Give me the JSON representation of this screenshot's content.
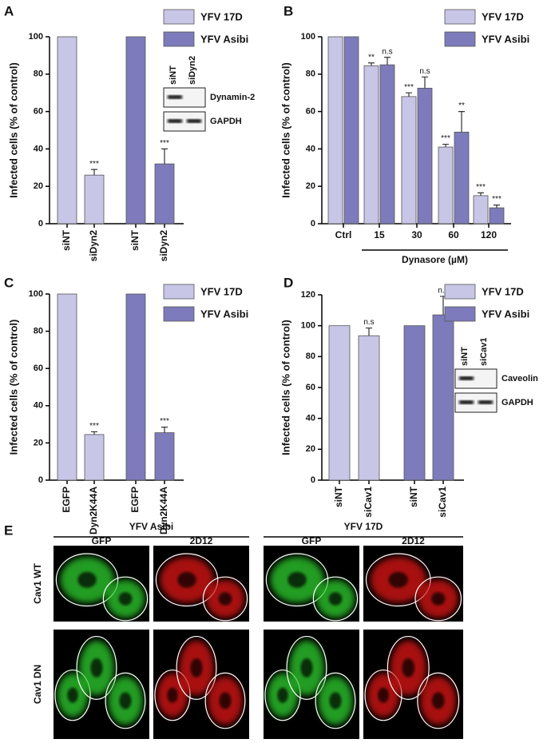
{
  "chart_data": [
    {
      "type": "bar",
      "panel": "A",
      "ylabel": "Infected cells (% of control)",
      "categories": [
        "siNT",
        "siDyn2",
        "siNT",
        "siDyn2"
      ],
      "series": [
        {
          "name": "YFV 17D",
          "color": "#c8c6e6",
          "values": [
            100,
            26,
            null,
            null
          ],
          "errors": [
            null,
            3,
            null,
            null
          ],
          "annotations": [
            null,
            "***",
            null,
            null
          ]
        },
        {
          "name": "YFV Asibi",
          "color": "#7d7bbb",
          "values": [
            null,
            null,
            100,
            32
          ],
          "errors": [
            null,
            null,
            null,
            8
          ],
          "annotations": [
            null,
            null,
            null,
            "***"
          ]
        }
      ],
      "ylim": [
        0,
        100
      ],
      "yticks": [
        0,
        20,
        40,
        60,
        80,
        100
      ],
      "inset": {
        "lanes": [
          "siNT",
          "siDyn2"
        ],
        "bands": [
          "Dynamin-2",
          "GAPDH"
        ]
      }
    },
    {
      "type": "bar",
      "panel": "B",
      "ylabel": "Infected cells (% of control)",
      "xlabel": "Dynasore (µM)",
      "categories": [
        "Ctrl",
        "15",
        "30",
        "60",
        "120"
      ],
      "series": [
        {
          "name": "YFV 17D",
          "color": "#c8c6e6",
          "values": [
            100,
            84.5,
            68,
            41,
            15
          ],
          "errors": [
            null,
            1.5,
            2,
            1.5,
            1.5
          ],
          "annotations": [
            null,
            "**",
            "***",
            "***",
            "***"
          ]
        },
        {
          "name": "YFV Asibi",
          "color": "#7d7bbb",
          "values": [
            100,
            85,
            72.5,
            49,
            8.5
          ],
          "errors": [
            null,
            4,
            6,
            11,
            1.5
          ],
          "annotations": [
            null,
            "n.s",
            "n.s",
            "**",
            "***"
          ]
        }
      ],
      "ylim": [
        0,
        100
      ],
      "yticks": [
        0,
        20,
        40,
        60,
        80,
        100
      ]
    },
    {
      "type": "bar",
      "panel": "C",
      "ylabel": "Infected cells (% of control)",
      "categories": [
        "EGFP",
        "Dyn2K44A",
        "EGFP",
        "Dyn2K44A"
      ],
      "series": [
        {
          "name": "YFV 17D",
          "color": "#c8c6e6",
          "values": [
            100,
            24.5,
            null,
            null
          ],
          "errors": [
            null,
            1.5,
            null,
            null
          ],
          "annotations": [
            null,
            "***",
            null,
            null
          ]
        },
        {
          "name": "YFV Asibi",
          "color": "#7d7bbb",
          "values": [
            null,
            null,
            100,
            25.5
          ],
          "errors": [
            null,
            null,
            null,
            3
          ],
          "annotations": [
            null,
            null,
            null,
            "***"
          ]
        }
      ],
      "ylim": [
        0,
        100
      ],
      "yticks": [
        0,
        20,
        40,
        60,
        80,
        100
      ]
    },
    {
      "type": "bar",
      "panel": "D",
      "ylabel": "Infected cells (% of control)",
      "categories": [
        "siNT",
        "siCav1",
        "siNT",
        "siCav1"
      ],
      "series": [
        {
          "name": "YFV 17D",
          "color": "#c8c6e6",
          "values": [
            100,
            93.5,
            null,
            null
          ],
          "errors": [
            null,
            5,
            null,
            null
          ],
          "annotations": [
            null,
            "n.s",
            null,
            null
          ]
        },
        {
          "name": "YFV Asibi",
          "color": "#7d7bbb",
          "values": [
            null,
            null,
            100,
            107
          ],
          "errors": [
            null,
            null,
            null,
            12
          ],
          "annotations": [
            null,
            null,
            null,
            "n.s"
          ]
        }
      ],
      "ylim": [
        0,
        120
      ],
      "yticks": [
        0,
        20,
        40,
        60,
        80,
        100,
        120
      ],
      "inset": {
        "lanes": [
          "siNT",
          "siCav1"
        ],
        "bands": [
          "Caveolin",
          "GAPDH"
        ]
      }
    }
  ],
  "panel_e": {
    "panel": "E",
    "groups": [
      "YFV Asibi",
      "YFV 17D"
    ],
    "columns": [
      "GFP",
      "2D12",
      "GFP",
      "2D12"
    ],
    "rows": [
      "Cav1 WT",
      "Cav1 DN"
    ]
  }
}
